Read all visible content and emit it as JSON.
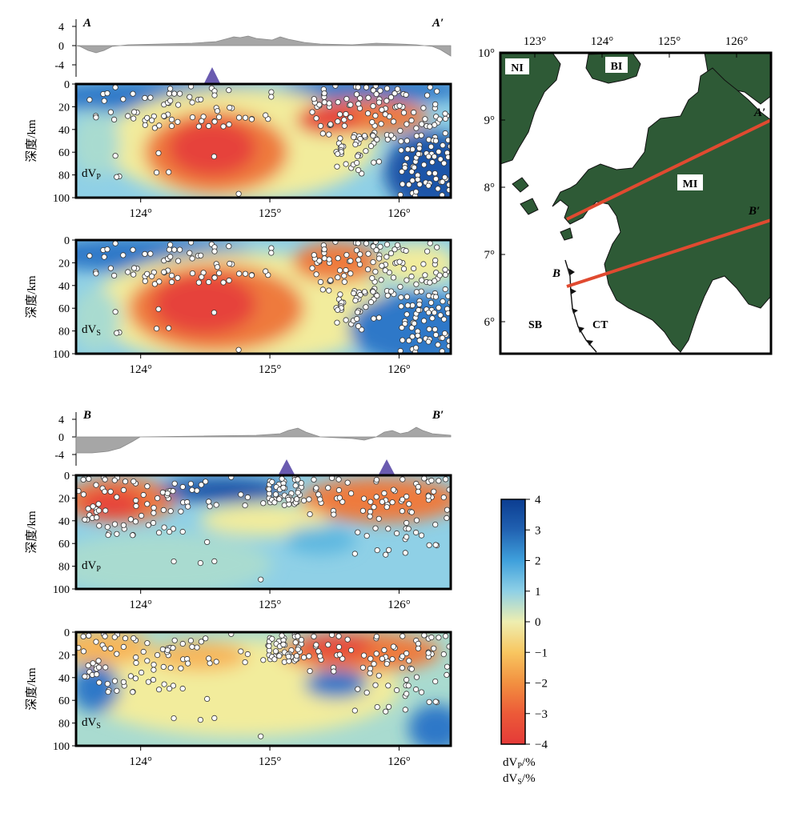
{
  "sectionA": {
    "start_label": "A",
    "end_label": "A′",
    "elev_ticks": [
      "4",
      "0",
      "-4"
    ],
    "volcano_lon": [
      124.6
    ],
    "panels": [
      {
        "comp_main": "dV",
        "comp_sub": "P"
      },
      {
        "comp_main": "dV",
        "comp_sub": "S"
      }
    ]
  },
  "sectionB": {
    "start_label": "B",
    "end_label": "B′",
    "elev_ticks": [
      "4",
      "0",
      "-4"
    ],
    "volcano_lon": [
      125.18,
      126.0
    ],
    "panels": [
      {
        "comp_main": "dV",
        "comp_sub": "P"
      },
      {
        "comp_main": "dV",
        "comp_sub": "S"
      }
    ]
  },
  "depth_axis": {
    "label": "深度/km",
    "ticks": [
      "0",
      "20",
      "40",
      "60",
      "80",
      "100"
    ]
  },
  "lon_ticks": [
    "124°",
    "125°",
    "126°"
  ],
  "map": {
    "lon_ticks": [
      "123°",
      "124°",
      "125°",
      "126°"
    ],
    "lat_ticks": [
      "10°",
      "9°",
      "8°",
      "7°",
      "6°"
    ],
    "islands": [
      {
        "label": "NI",
        "name": "negros-label"
      },
      {
        "label": "BI",
        "name": "bohol-label"
      },
      {
        "label": "MI",
        "name": "mindanao-label"
      }
    ],
    "sea_labels": [
      "SB",
      "CT"
    ],
    "profile_labels": [
      "A′",
      "B′",
      "B"
    ],
    "land_color": "#2e5a36",
    "line_color": "#e04a30"
  },
  "colorbar": {
    "ticks": [
      "4",
      "3",
      "2",
      "1",
      "0",
      "−1",
      "−2",
      "−3",
      "−4"
    ],
    "label_p": {
      "main": "dV",
      "sub": "P",
      "unit": "/%"
    },
    "label_s": {
      "main": "dV",
      "sub": "S",
      "unit": "/%"
    },
    "colors": [
      "#0b3d91",
      "#2f78c8",
      "#5fb8e0",
      "#a9dbd0",
      "#f2ec9c",
      "#f7b65a",
      "#ee7a3c",
      "#e6423a"
    ]
  }
}
